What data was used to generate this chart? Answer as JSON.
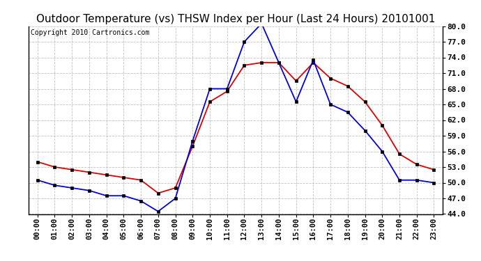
{
  "title": "Outdoor Temperature (vs) THSW Index per Hour (Last 24 Hours) 20101001",
  "copyright": "Copyright 2010 Cartronics.com",
  "hours": [
    "00:00",
    "01:00",
    "02:00",
    "03:00",
    "04:00",
    "05:00",
    "06:00",
    "07:00",
    "08:00",
    "09:00",
    "10:00",
    "11:00",
    "12:00",
    "13:00",
    "14:00",
    "15:00",
    "16:00",
    "17:00",
    "18:00",
    "19:00",
    "20:00",
    "21:00",
    "22:00",
    "23:00"
  ],
  "temp_red": [
    54.0,
    53.0,
    52.5,
    52.0,
    51.5,
    51.0,
    50.5,
    48.0,
    49.0,
    57.0,
    65.5,
    67.5,
    72.5,
    73.0,
    73.0,
    69.5,
    73.0,
    70.0,
    68.5,
    65.5,
    61.0,
    55.5,
    53.5,
    52.5
  ],
  "thsw_blue": [
    50.5,
    49.5,
    49.0,
    48.5,
    47.5,
    47.5,
    46.5,
    44.5,
    47.0,
    58.0,
    68.0,
    68.0,
    77.0,
    80.5,
    73.0,
    65.5,
    73.5,
    65.0,
    63.5,
    60.0,
    56.0,
    50.5,
    50.5,
    50.0
  ],
  "ylim_min": 44.0,
  "ylim_max": 80.0,
  "yticks": [
    44.0,
    47.0,
    50.0,
    53.0,
    56.0,
    59.0,
    62.0,
    65.0,
    68.0,
    71.0,
    74.0,
    77.0,
    80.0
  ],
  "bg_color": "#ffffff",
  "plot_bg": "#ffffff",
  "grid_color": "#c0c0c0",
  "red_color": "#dd0000",
  "blue_color": "#0000dd",
  "marker_color": "#000000",
  "title_fontsize": 11,
  "copyright_fontsize": 7,
  "tick_fontsize": 7.5
}
